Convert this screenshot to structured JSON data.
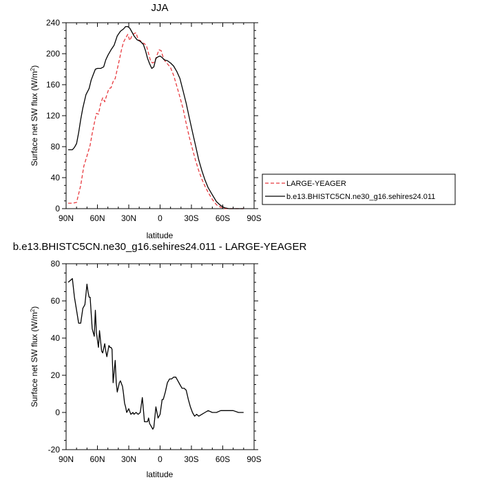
{
  "chart_data": [
    {
      "type": "line",
      "title": "JJA",
      "xlabel": "latitude",
      "ylabel": "Surface net SW flux (W/m²)",
      "xlim": [
        90,
        -90
      ],
      "ylim": [
        0,
        240
      ],
      "x_tick_values": [
        90,
        60,
        30,
        0,
        -30,
        -60,
        -90
      ],
      "x_tick_labels": [
        "90N",
        "60N",
        "30N",
        "0",
        "30S",
        "60S",
        "90S"
      ],
      "y_ticks": [
        0,
        40,
        80,
        120,
        160,
        200,
        240
      ],
      "grid": false,
      "legend_position": "right",
      "series": [
        {
          "name": "LARGE-YEAGER",
          "color": "#e8383d",
          "dash": "dashed",
          "x": [
            88,
            84,
            80,
            76,
            73,
            70,
            67,
            65,
            63,
            61,
            59,
            57,
            55,
            53,
            51,
            49,
            47,
            45,
            43,
            41,
            39,
            37,
            35,
            33,
            31,
            29,
            27,
            25,
            23,
            21,
            19,
            17,
            15,
            13,
            11,
            9,
            7,
            5,
            3,
            1,
            -1,
            -3,
            -5,
            -7,
            -10,
            -13,
            -16,
            -19,
            -22,
            -25,
            -28,
            -31,
            -34,
            -37,
            -40,
            -43,
            -46,
            -50,
            -54,
            -58,
            -62,
            -66,
            -70,
            -75,
            -80
          ],
          "y": [
            7,
            7,
            8,
            30,
            55,
            68,
            82,
            97,
            110,
            123,
            122,
            135,
            143,
            138,
            147,
            155,
            156,
            164,
            168,
            180,
            192,
            205,
            215,
            220,
            225,
            217,
            223,
            226,
            227,
            218,
            217,
            214,
            213,
            210,
            200,
            190,
            188,
            190,
            198,
            205,
            204,
            195,
            190,
            187,
            182,
            172,
            158,
            144,
            129,
            110,
            92,
            77,
            62,
            49,
            38,
            29,
            21,
            12,
            5,
            2,
            0,
            0,
            0,
            0,
            0
          ]
        },
        {
          "name": "b.e13.BHISTC5CN.ne30_g16.sehires24.011",
          "color": "#000000",
          "dash": "solid",
          "x": [
            88,
            84,
            82,
            80,
            78,
            76,
            74,
            71,
            68,
            66,
            64,
            62,
            60,
            57,
            54,
            52,
            50,
            47,
            44,
            41,
            38,
            35,
            33,
            31,
            29,
            27,
            25,
            22,
            19,
            16,
            14,
            12,
            10,
            8,
            6,
            4,
            2,
            0,
            -2,
            -4,
            -7,
            -10,
            -13,
            -16,
            -19,
            -22,
            -25,
            -28,
            -31,
            -34,
            -37,
            -40,
            -43,
            -46,
            -50,
            -54,
            -58,
            -62,
            -66,
            -70,
            -75,
            -80
          ],
          "y": [
            76,
            76,
            79,
            84,
            98,
            115,
            130,
            147,
            155,
            166,
            173,
            180,
            181,
            181,
            183,
            192,
            198,
            205,
            211,
            223,
            229,
            232,
            235,
            235,
            233,
            228,
            223,
            218,
            216,
            212,
            204,
            194,
            187,
            181,
            183,
            194,
            196,
            197,
            195,
            192,
            191,
            188,
            184,
            177,
            168,
            152,
            136,
            117,
            99,
            81,
            63,
            49,
            37,
            27,
            18,
            9,
            4,
            1,
            0,
            0,
            0,
            0
          ]
        }
      ]
    },
    {
      "type": "line",
      "title": "b.e13.BHISTC5CN.ne30_g16.sehires24.011 - LARGE-YEAGER",
      "xlabel": "latitude",
      "ylabel": "Surface net SW flux (W/m²)",
      "xlim": [
        90,
        -90
      ],
      "ylim": [
        -20,
        80
      ],
      "x_tick_values": [
        90,
        60,
        30,
        0,
        -30,
        -60,
        -90
      ],
      "x_tick_labels": [
        "90N",
        "60N",
        "30N",
        "0",
        "30S",
        "60S",
        "90S"
      ],
      "y_ticks": [
        -20,
        0,
        20,
        40,
        60,
        80
      ],
      "grid": false,
      "series": [
        {
          "color": "#000000",
          "dash": "solid",
          "x": [
            88,
            86,
            84,
            82,
            80,
            78,
            76,
            74,
            72,
            70,
            69,
            68,
            67,
            65,
            63,
            62,
            61,
            59,
            58,
            56,
            55,
            53,
            52,
            51,
            49,
            48,
            47,
            46,
            45,
            43,
            42,
            41,
            39,
            38,
            36,
            35,
            34,
            33,
            32,
            30,
            28,
            26,
            25,
            23,
            21,
            19,
            17,
            15,
            13,
            12,
            11,
            10,
            9,
            8,
            7,
            6,
            4,
            2,
            1,
            0,
            -1,
            -2,
            -3,
            -5,
            -7,
            -9,
            -11,
            -13,
            -15,
            -17,
            -19,
            -21,
            -23,
            -25,
            -27,
            -29,
            -31,
            -33,
            -35,
            -37,
            -40,
            -43,
            -46,
            -50,
            -54,
            -58,
            -62,
            -66,
            -70,
            -75,
            -80
          ],
          "y": [
            70,
            71,
            72,
            62,
            55,
            48,
            48,
            56,
            58,
            69,
            65,
            62,
            62,
            45,
            41,
            55,
            43,
            35,
            44,
            33,
            32,
            37,
            33,
            30,
            36,
            35,
            35,
            34,
            16,
            28,
            16,
            11,
            16,
            17,
            14,
            10,
            5,
            3,
            0,
            2,
            -1,
            0,
            -1,
            0,
            -1,
            0,
            8,
            -5,
            -5,
            -5,
            -3,
            -6,
            -7,
            -8,
            -9,
            -8,
            3,
            -3,
            -2,
            -1,
            3,
            7,
            7,
            11,
            16,
            18,
            18,
            19,
            19,
            17,
            15,
            13,
            13,
            12,
            7,
            3,
            0,
            -2,
            -1,
            -2,
            -1,
            0,
            1,
            0,
            0,
            1,
            1,
            1,
            1,
            0,
            0
          ]
        }
      ]
    }
  ]
}
